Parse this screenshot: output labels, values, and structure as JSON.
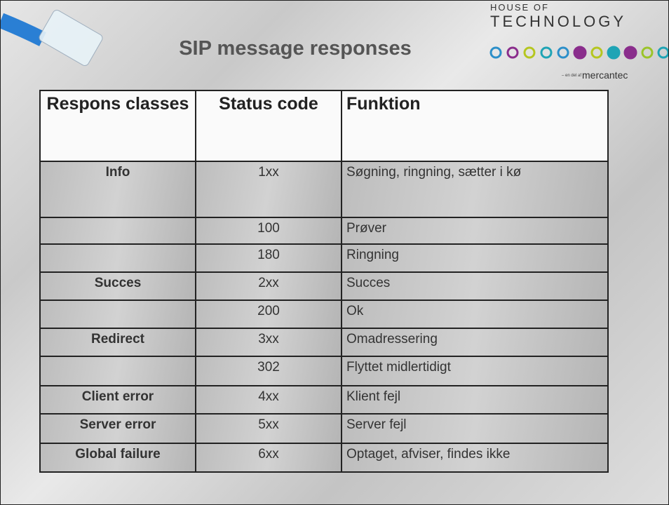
{
  "header": {
    "title": "SIP message responses"
  },
  "logo": {
    "line1": "HOUSE OF",
    "line2": "TECHNOLOGY",
    "tagline": "– en del af",
    "brand": "mercantec"
  },
  "table": {
    "headers": [
      "Respons classes",
      "Status code",
      "Funktion"
    ],
    "rows": [
      [
        "Info",
        "1xx",
        "Søgning, ringning, sætter i kø"
      ],
      [
        null,
        "100",
        "Prøver"
      ],
      [
        null,
        "180",
        "Ringning"
      ],
      [
        "Succes",
        "2xx",
        "Succes"
      ],
      [
        null,
        "200",
        "Ok"
      ],
      [
        "Redirect",
        "3xx",
        "Omadressering"
      ],
      [
        null,
        "302",
        "Flyttet midlertidigt"
      ],
      [
        "Client error",
        "4xx",
        "Klient fejl"
      ],
      [
        "Server error",
        "5xx",
        "Server fejl"
      ],
      [
        "Global failure",
        "6xx",
        "Optaget, afviser, findes ikke"
      ]
    ]
  }
}
